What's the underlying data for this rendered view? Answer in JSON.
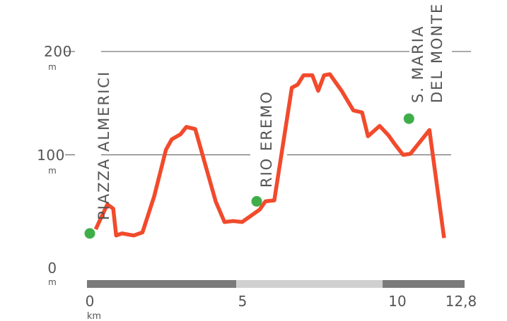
{
  "chart_data": {
    "type": "line",
    "x_unit": "km",
    "y_unit": "m",
    "xlim": [
      0,
      12.8
    ],
    "ylim": [
      0,
      200
    ],
    "y_ticks": [
      {
        "value": 0,
        "label": "0"
      },
      {
        "value": 100,
        "label": "100"
      },
      {
        "value": 200,
        "label": "200"
      }
    ],
    "x_ticks": [
      {
        "value": 0,
        "label": "0"
      },
      {
        "value": 5,
        "label": "5"
      },
      {
        "value": 10,
        "label": "10"
      },
      {
        "value": 12.8,
        "label": "12,8"
      }
    ],
    "grid": true,
    "series": [
      {
        "x": [
          0.2,
          0.6,
          0.8,
          0.9,
          1.1,
          1.5,
          1.8,
          2.2,
          2.6,
          2.8,
          3.1,
          3.3,
          3.6,
          4.0,
          4.3,
          4.6,
          4.9,
          5.2,
          5.8,
          6.0,
          6.3,
          6.9,
          7.1,
          7.3,
          7.6,
          7.8,
          8.0,
          8.2,
          8.4,
          8.6,
          9.0,
          9.3,
          9.5,
          9.9,
          10.2,
          10.4,
          10.7,
          10.95,
          11.6,
          12.1
        ],
        "y": [
          28,
          52,
          48,
          22,
          24,
          22,
          25,
          60,
          105,
          115,
          120,
          127,
          125,
          85,
          55,
          35,
          36,
          35,
          47,
          55,
          56,
          165,
          168,
          177,
          177,
          162,
          177,
          178,
          170,
          162,
          143,
          141,
          118,
          128,
          119,
          111,
          100,
          101,
          124,
          19.5
        ]
      }
    ],
    "line_color": "#f24a2c",
    "waypoints": [
      {
        "label": "PIAZZA ALMERICI",
        "x": 0.0,
        "y": 24
      },
      {
        "label": "RIO EREMO",
        "x": 5.7,
        "y": 55
      },
      {
        "label": "S. MARIA DEL MONTE",
        "label_lines": [
          "S. MARIA",
          "DEL MONTE"
        ],
        "x": 10.9,
        "y": 135
      }
    ],
    "waypoint_color": "#3fae49",
    "distance_bar": {
      "color_dark": "#7a7a7a",
      "color_light": "#d0d0d0",
      "segments": [
        [
          0,
          5
        ],
        [
          5,
          10
        ],
        [
          10,
          12.8
        ]
      ]
    }
  }
}
